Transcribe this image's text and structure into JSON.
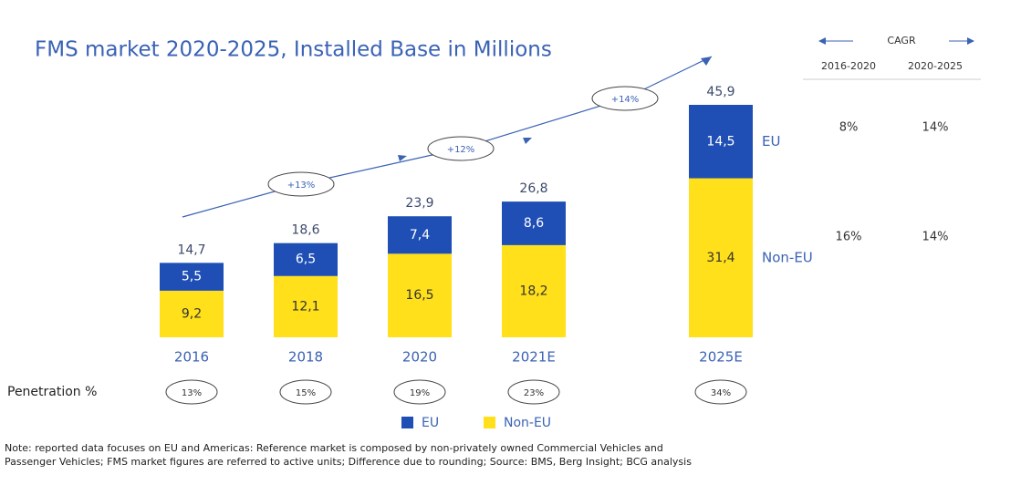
{
  "chart_data": {
    "type": "bar",
    "stacked": true,
    "title": "FMS market 2020-2025, Installed Base in Millions",
    "categories": [
      "2016",
      "2018",
      "2020",
      "2021E",
      "2025E"
    ],
    "series": [
      {
        "name": "Non-EU",
        "color": "#ffe01a",
        "values": [
          9.2,
          12.1,
          16.5,
          18.2,
          31.4
        ],
        "value_labels": [
          "9,2",
          "12,1",
          "16,5",
          "18,2",
          "31,4"
        ]
      },
      {
        "name": "EU",
        "color": "#1f4fb5",
        "values": [
          5.5,
          6.5,
          7.4,
          8.6,
          14.5
        ],
        "value_labels": [
          "5,5",
          "6,5",
          "7,4",
          "8,6",
          "14,5"
        ]
      }
    ],
    "totals": [
      14.7,
      18.6,
      23.9,
      26.8,
      45.9
    ],
    "total_labels": [
      "14,7",
      "18,6",
      "23,9",
      "26,8",
      "45,9"
    ],
    "growth_labels": [
      "+13%",
      "+12%",
      "+14%"
    ],
    "penetration": {
      "label": "Penetration %",
      "values": [
        13,
        15,
        19,
        23,
        34
      ],
      "value_labels": [
        "13%",
        "15%",
        "19%",
        "23%",
        "34%"
      ]
    },
    "cagr": {
      "title": "CAGR",
      "columns": [
        "2016-2020",
        "2020-2025"
      ],
      "rows": [
        [
          "8%",
          "14%"
        ],
        [
          "16%",
          "14%"
        ]
      ]
    },
    "note": [
      "Note: reported data focuses on EU and Americas: Reference market is composed by non-privately owned Commercial Vehicles and",
      "Passenger Vehicles; FMS market figures are referred to active units; Difference due to rounding; Source: BMS, Berg Insight; BCG analysis"
    ]
  }
}
